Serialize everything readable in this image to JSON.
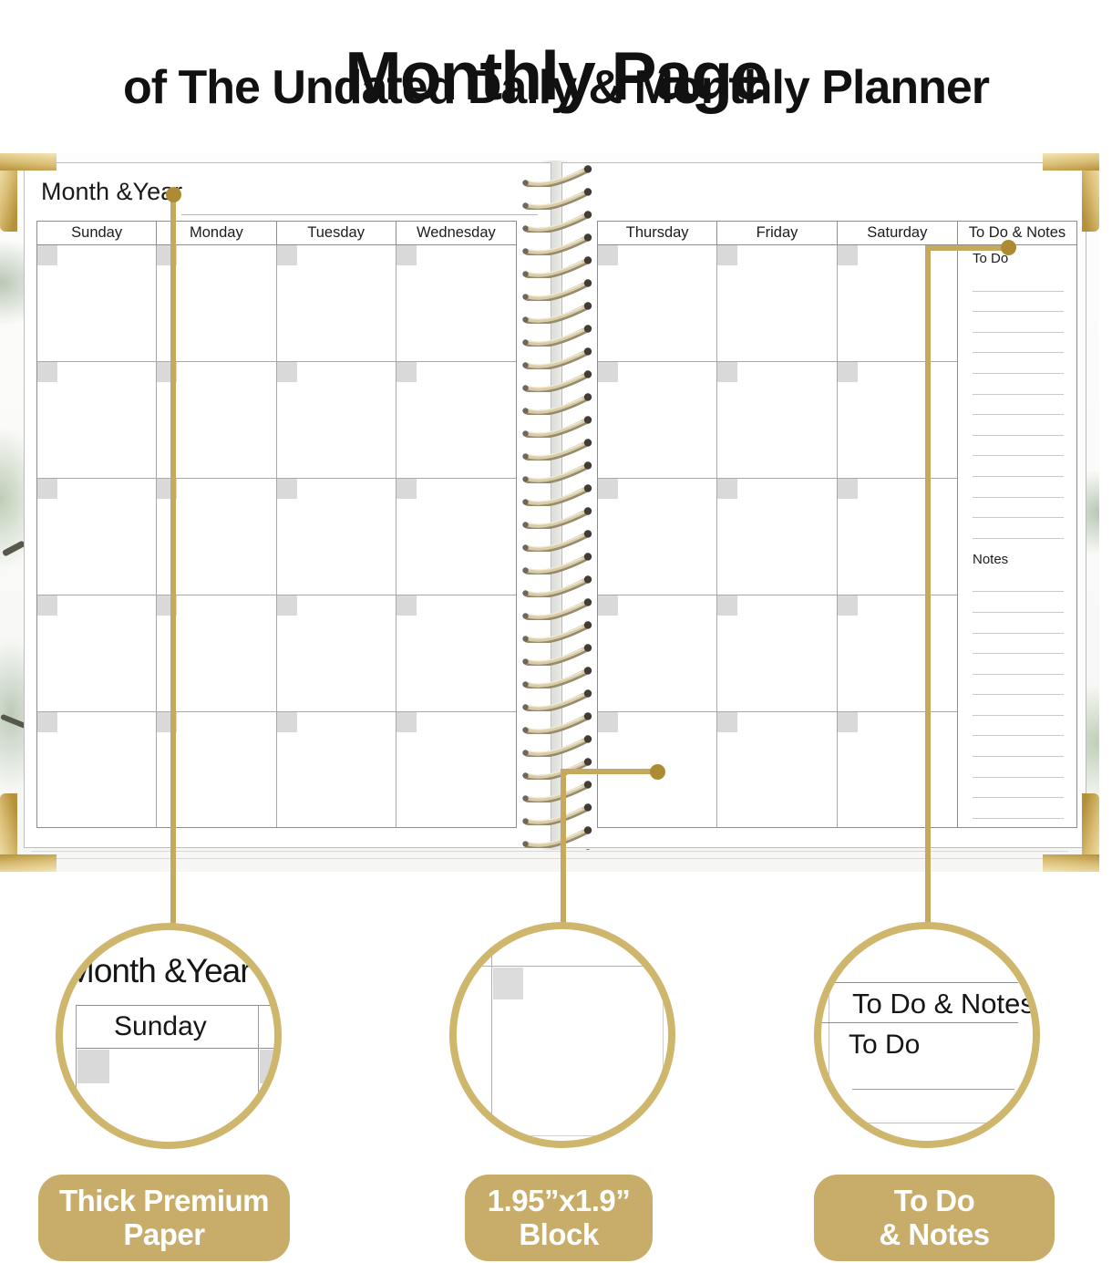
{
  "header": {
    "title": "Monthly Page",
    "subtitle": "of The Undated Daily & Monthly Planner"
  },
  "planner": {
    "month_year_label": "Month &Year",
    "left_days": [
      "Sunday",
      "Monday",
      "Tuesday",
      "Wednesday"
    ],
    "right_days": [
      "Thursday",
      "Friday",
      "Saturday"
    ],
    "grid": {
      "rows": 5
    },
    "todo_col": {
      "header": "To Do & Notes",
      "todo_label": "To Do",
      "notes_label": "Notes",
      "todo_lines": 13,
      "notes_lines": 13
    }
  },
  "callouts": {
    "circle1": {
      "month_year": "Month &Year",
      "day": "Sunday"
    },
    "circle2": {
      "feature": "calendar-block"
    },
    "circle3": {
      "header": "To Do & Notes",
      "todo": "To Do"
    }
  },
  "badges": [
    {
      "line1": "Thick Premium",
      "line2": "Paper"
    },
    {
      "line1": "1.95”x1.9”",
      "line2": "Block"
    },
    {
      "line1": "To Do",
      "line2": "& Notes"
    }
  ],
  "colors": {
    "gold_line": "#c5a95e",
    "gold_dot": "#ad8b35",
    "gold_ring": "#cfb66d",
    "gold_badge": "#c8ad6a",
    "date_square": "#d9d9d9"
  }
}
